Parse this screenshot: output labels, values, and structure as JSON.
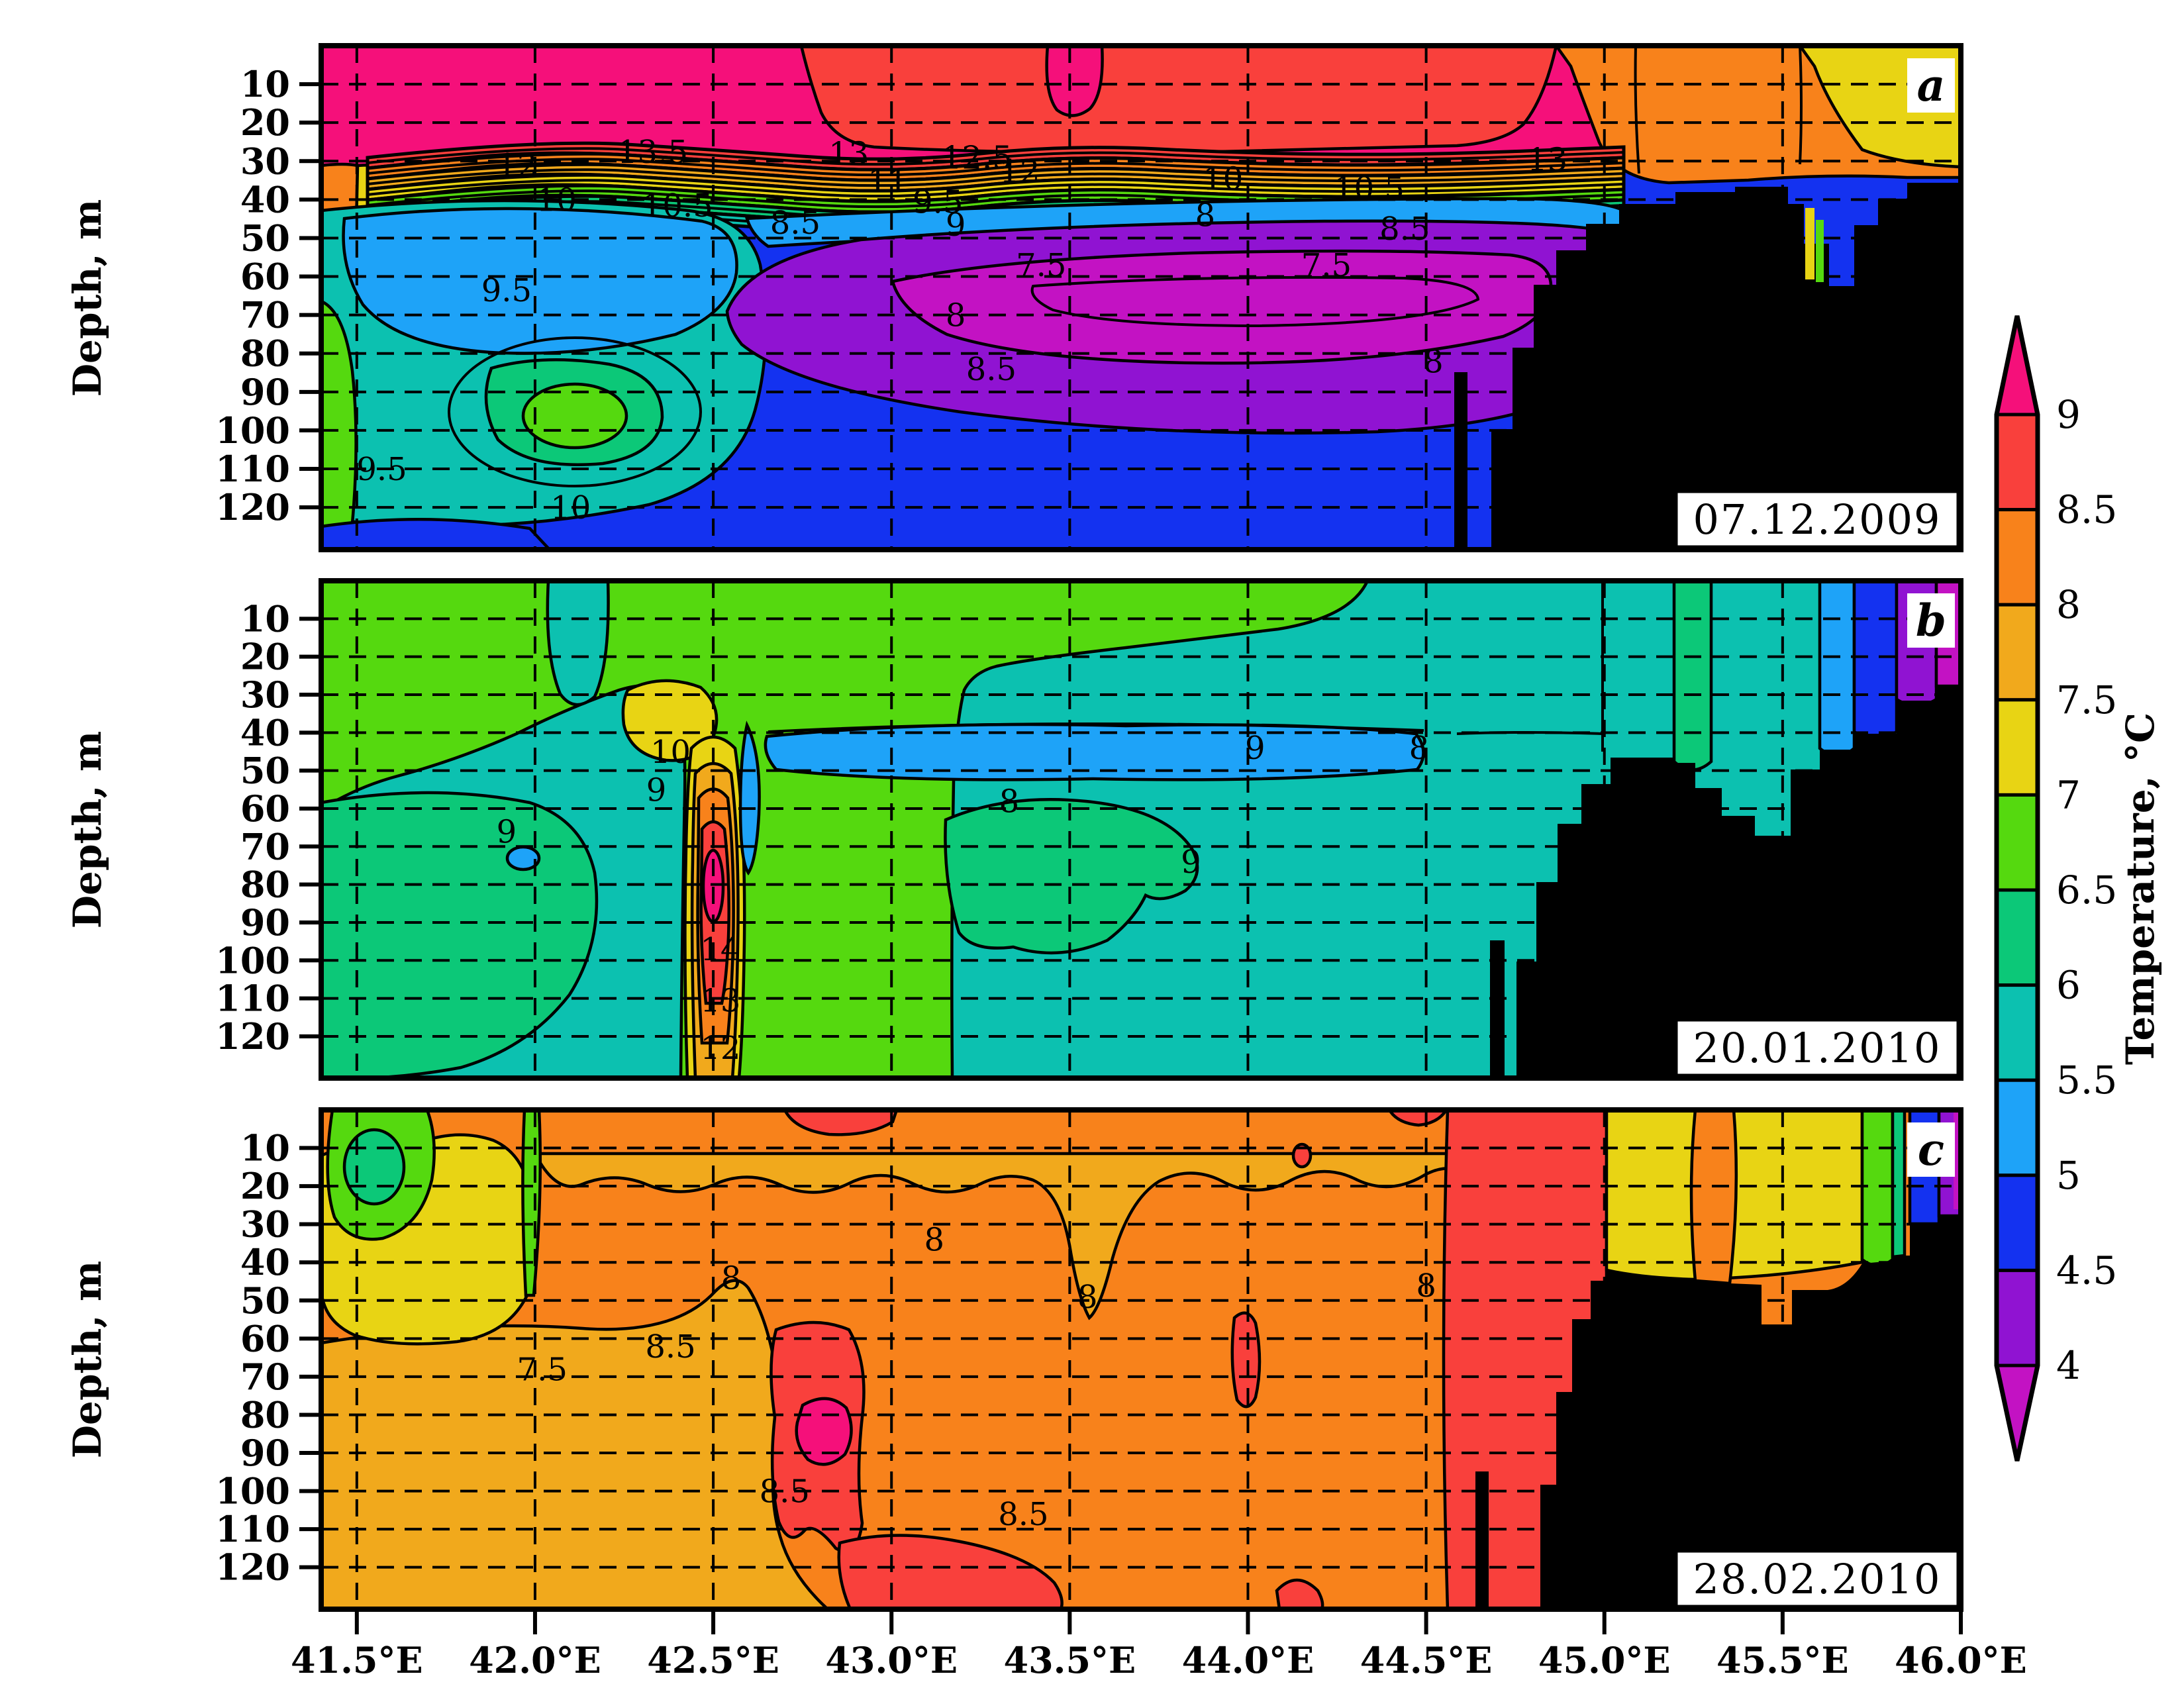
{
  "chart_data": {
    "type": "heatmap",
    "description": "Three vertical temperature contour sections (depth vs longitude) on three dates, with shared temperature colorbar",
    "x_axis": {
      "ticks": [
        "41.5°E",
        "42.0°E",
        "42.5°E",
        "43.0°E",
        "43.5°E",
        "44.0°E",
        "44.5°E",
        "45.0°E",
        "45.5°E",
        "46.0°E"
      ],
      "range_deg": [
        41.4,
        46.0
      ]
    },
    "y_axis": {
      "label": "Depth, m",
      "ticks": [
        "10",
        "20",
        "30",
        "40",
        "50",
        "60",
        "70",
        "80",
        "90",
        "100",
        "110",
        "120"
      ],
      "range_m": [
        0,
        131
      ]
    },
    "colorbar": {
      "label": "Temperature, °C",
      "tick_labels": [
        "9",
        "8.5",
        "8",
        "7.5",
        "7",
        "6.5",
        "6",
        "5.5",
        "5",
        "4.5",
        "4"
      ],
      "palette": [
        {
          "level": "> 9",
          "color": "#F5107A"
        },
        {
          "level": "8.5–9",
          "color": "#F9403C"
        },
        {
          "level": "8–8.5",
          "color": "#F8821B"
        },
        {
          "level": "7.5–8",
          "color": "#F1A91C"
        },
        {
          "level": "7–7.5",
          "color": "#E8D414"
        },
        {
          "level": "6.5–7",
          "color": "#55D90F"
        },
        {
          "level": "6–6.5",
          "color": "#0CC878"
        },
        {
          "level": "5.5–6",
          "color": "#0CC1B0"
        },
        {
          "level": "5–5.5",
          "color": "#1EA3F8"
        },
        {
          "level": "4.5–5",
          "color": "#1432F0"
        },
        {
          "level": "4–4.5",
          "color": "#9013D2"
        },
        {
          "level": "< 4",
          "color": "#C312C3"
        }
      ]
    },
    "colors": {
      "pink": "#F5107A",
      "red": "#F9403C",
      "orange": "#F8821B",
      "amber": "#F1A91C",
      "yellow": "#E8D414",
      "green": "#55D90F",
      "tealGreen": "#0CC878",
      "teal": "#0CC1B0",
      "lightBlue": "#1EA3F8",
      "blue": "#1432F0",
      "purple": "#9013D2",
      "magenta": "#C312C3",
      "land": "#000000"
    },
    "panels": [
      {
        "letter": "a",
        "date": "07.12.2009",
        "contour_labels": [
          [
            41.95,
            31,
            "12"
          ],
          [
            42.33,
            27.5,
            "13.5"
          ],
          [
            42.88,
            28,
            "13"
          ],
          [
            43.24,
            29,
            "12.5"
          ],
          [
            42.99,
            35,
            "11"
          ],
          [
            43.13,
            40.5,
            "9.5"
          ],
          [
            43.36,
            32.5,
            "12"
          ],
          [
            43.93,
            34.5,
            "10"
          ],
          [
            44.34,
            37,
            "10.5"
          ],
          [
            44.84,
            29.5,
            "13"
          ],
          [
            42.06,
            40,
            "10"
          ],
          [
            42.4,
            41.5,
            "10.5"
          ],
          [
            42.73,
            46,
            "8.5"
          ],
          [
            43.18,
            46.5,
            "9"
          ],
          [
            43.88,
            44,
            "8"
          ],
          [
            44.44,
            47.5,
            "8.5"
          ],
          [
            43.42,
            57,
            "7.5"
          ],
          [
            44.22,
            57,
            "7.5"
          ],
          [
            43.18,
            70,
            "8"
          ],
          [
            43.28,
            84,
            "8.5"
          ],
          [
            44.52,
            82,
            "8"
          ],
          [
            41.92,
            63.5,
            "9.5"
          ],
          [
            41.57,
            110,
            "9.5"
          ],
          [
            42.1,
            120,
            "10"
          ]
        ]
      },
      {
        "letter": "b",
        "date": "20.01.2010",
        "contour_labels": [
          [
            41.92,
            66,
            "9"
          ],
          [
            42.38,
            45,
            "10"
          ],
          [
            42.34,
            55,
            "9"
          ],
          [
            43.33,
            58,
            "8"
          ],
          [
            43.84,
            74,
            "9"
          ],
          [
            44.02,
            44,
            "9"
          ],
          [
            44.48,
            44,
            "8"
          ],
          [
            42.52,
            97,
            "14"
          ],
          [
            42.52,
            110.5,
            "13"
          ],
          [
            42.52,
            123,
            "12"
          ]
        ]
      },
      {
        "letter": "c",
        "date": "28.02.2010",
        "contour_labels": [
          [
            42.02,
            68,
            "7.5"
          ],
          [
            42.38,
            62,
            "8.5"
          ],
          [
            42.55,
            44,
            "8"
          ],
          [
            43.12,
            34,
            "8"
          ],
          [
            43.55,
            49,
            "8"
          ],
          [
            44.5,
            46,
            "8"
          ],
          [
            42.7,
            100,
            "8.5"
          ],
          [
            43.37,
            106,
            "8.5"
          ]
        ]
      }
    ]
  }
}
